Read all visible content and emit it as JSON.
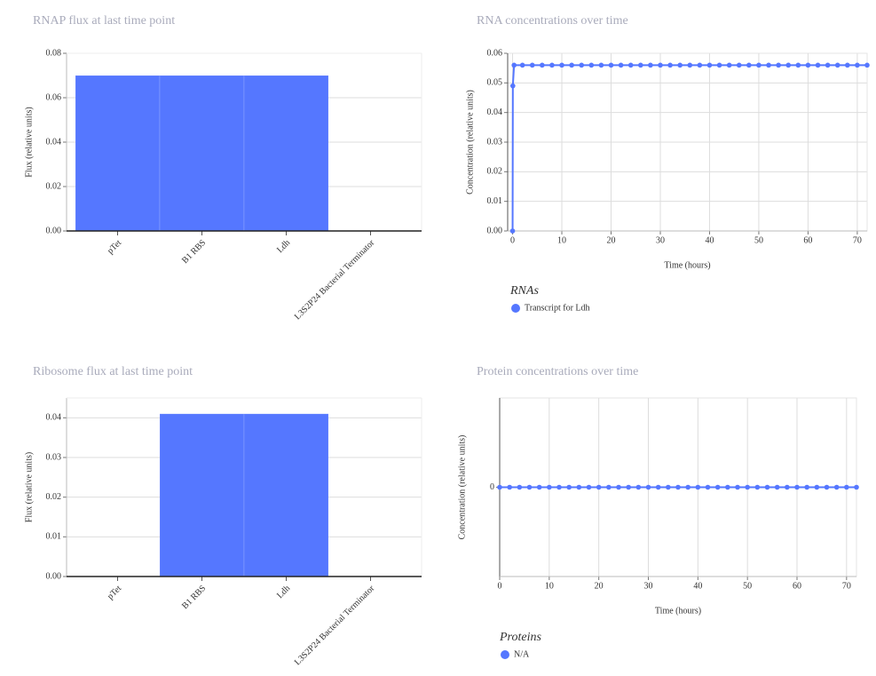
{
  "chart_data": [
    {
      "type": "bar",
      "title": "RNAP flux at last time point",
      "ylabel": "Flux (relative units)",
      "categories": [
        "pTet",
        "B1 RBS",
        "Ldh",
        "L3S2P24 Bacterial Terminator"
      ],
      "values": [
        0.07,
        0.07,
        0.07,
        0
      ],
      "color": "#5577ff",
      "ylim": [
        0,
        0.08
      ],
      "yticks": [
        {
          "value": 0,
          "label": "0.00"
        },
        0.02,
        0.04,
        0.06,
        0.08
      ],
      "grid": "y"
    },
    {
      "type": "line",
      "title": "RNA concentrations over time",
      "xlabel": "Time (hours)",
      "ylabel": "Concentration (relative units)",
      "legend_title": "RNAs",
      "x": [
        0,
        0.05,
        0.3,
        2,
        4,
        6,
        8,
        10,
        12,
        14,
        16,
        18,
        20,
        22,
        24,
        26,
        28,
        30,
        32,
        34,
        36,
        38,
        40,
        42,
        44,
        46,
        48,
        50,
        52,
        54,
        56,
        58,
        60,
        62,
        64,
        66,
        68,
        70,
        72
      ],
      "series": [
        {
          "name": "Transcript for Ldh",
          "color": "#5577ff",
          "values": [
            0,
            0.049,
            0.056,
            0.056,
            0.056,
            0.056,
            0.056,
            0.056,
            0.056,
            0.056,
            0.056,
            0.056,
            0.056,
            0.056,
            0.056,
            0.056,
            0.056,
            0.056,
            0.056,
            0.056,
            0.056,
            0.056,
            0.056,
            0.056,
            0.056,
            0.056,
            0.056,
            0.056,
            0.056,
            0.056,
            0.056,
            0.056,
            0.056,
            0.056,
            0.056,
            0.056,
            0.056,
            0.056,
            0.056
          ]
        }
      ],
      "xlim": [
        -1,
        72
      ],
      "xticks": [
        0,
        10,
        20,
        30,
        40,
        50,
        60,
        70
      ],
      "ylim": [
        0,
        0.06
      ],
      "yticks": [
        {
          "value": 0,
          "label": "0.00"
        },
        0.01,
        0.02,
        0.03,
        0.04,
        0.05,
        0.06
      ],
      "grid": "both"
    },
    {
      "type": "bar",
      "title": "Ribosome flux at last time point",
      "ylabel": "Flux (relative units)",
      "categories": [
        "pTet",
        "B1 RBS",
        "Ldh",
        "L3S2P24 Bacterial Terminator"
      ],
      "values": [
        0,
        0.041,
        0.041,
        0
      ],
      "color": "#5577ff",
      "ylim": [
        0,
        0.045
      ],
      "yticks": [
        {
          "value": 0,
          "label": "0.00"
        },
        0.01,
        0.02,
        0.03,
        0.04
      ],
      "grid": "y"
    },
    {
      "type": "line",
      "title": "Protein concentrations over time",
      "xlabel": "Time (hours)",
      "ylabel": "Concentration (relative units)",
      "legend_title": "Proteins",
      "x": [
        0,
        2,
        4,
        6,
        8,
        10,
        12,
        14,
        16,
        18,
        20,
        22,
        24,
        26,
        28,
        30,
        32,
        34,
        36,
        38,
        40,
        42,
        44,
        46,
        48,
        50,
        52,
        54,
        56,
        58,
        60,
        62,
        64,
        66,
        68,
        70,
        72
      ],
      "series": [
        {
          "name": "N/A",
          "color": "#5577ff",
          "values": [
            0,
            0,
            0,
            0,
            0,
            0,
            0,
            0,
            0,
            0,
            0,
            0,
            0,
            0,
            0,
            0,
            0,
            0,
            0,
            0,
            0,
            0,
            0,
            0,
            0,
            0,
            0,
            0,
            0,
            0,
            0,
            0,
            0,
            0,
            0,
            0,
            0
          ]
        }
      ],
      "xlim": [
        0,
        72
      ],
      "xticks": [
        0,
        10,
        20,
        30,
        40,
        50,
        60,
        70
      ],
      "ylim": [
        -1,
        1
      ],
      "yticks": [
        0
      ],
      "grid": "x"
    }
  ]
}
